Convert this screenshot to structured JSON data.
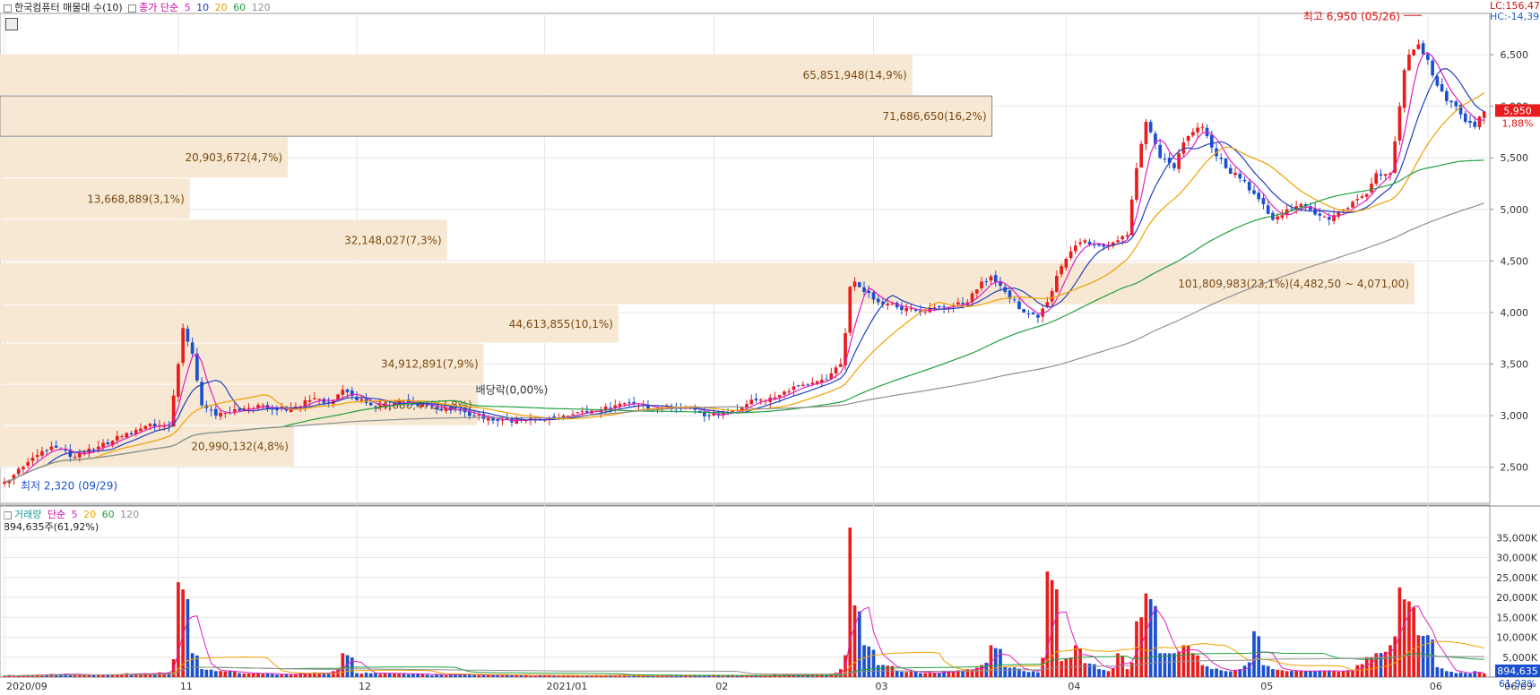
{
  "header": {
    "title": "한국컴퓨터 매물대 수(10)",
    "ma_prefix": "종가 단순",
    "ma": [
      {
        "label": "5",
        "color": "#e020c0"
      },
      {
        "label": "10",
        "color": "#2040c0"
      },
      {
        "label": "20",
        "color": "#f0a000"
      },
      {
        "label": "60",
        "color": "#20a040"
      },
      {
        "label": "120",
        "color": "#909090"
      }
    ],
    "lc": "LC:156,47",
    "hc": "HC:-14,39"
  },
  "volume_header": {
    "title": "거래량",
    "ma_prefix": "단순",
    "ma": [
      {
        "label": "5",
        "color": "#e020c0"
      },
      {
        "label": "20",
        "color": "#f0a000"
      },
      {
        "label": "60",
        "color": "#20a040"
      },
      {
        "label": "120",
        "color": "#909090"
      }
    ],
    "value": "894,635주(61,92%)"
  },
  "chart_data": {
    "type": "candlestick",
    "y_axis": {
      "ticks": [
        "2,500",
        "3,000",
        "3,500",
        "4,000",
        "4,500",
        "5,000",
        "5,500",
        "6,000",
        "6,500"
      ],
      "ylim": [
        2150,
        6900
      ]
    },
    "volume_axis": {
      "ticks": [
        "5,000K",
        "10,000K",
        "15,000K",
        "20,000K",
        "25,000K",
        "30,000K",
        "35,000K"
      ]
    },
    "x_labels": [
      {
        "label": "2020/09",
        "i": 0
      },
      {
        "label": "11",
        "i": 37
      },
      {
        "label": "12",
        "i": 75
      },
      {
        "label": "2021/01",
        "i": 115
      },
      {
        "label": "02",
        "i": 151
      },
      {
        "label": "03",
        "i": 185
      },
      {
        "label": "04",
        "i": 226
      },
      {
        "label": "05",
        "i": 267
      },
      {
        "label": "06",
        "i": 303
      }
    ],
    "last_date": "06/09",
    "current_price": "5,950",
    "current_pct": "1,88%",
    "current_volume": "894,635",
    "current_volume_pct": "61,92%",
    "high_annotation": "최고 6,950 (05/26)",
    "low_annotation": "최저 2,320 (09/29)",
    "dividend_annotation": "배당락(0,00%)",
    "volume_profile": [
      {
        "label": "65,851,948(14,9%)",
        "pct": 14.9,
        "low": 6100,
        "high": 6500
      },
      {
        "label": "71,686,650(16,2%)",
        "pct": 16.2,
        "low": 5700,
        "high": 6100
      },
      {
        "label": "20,903,672(4,7%)",
        "pct": 4.7,
        "low": 5300,
        "high": 5700
      },
      {
        "label": "13,668,889(3,1%)",
        "pct": 3.1,
        "low": 4900,
        "high": 5300
      },
      {
        "label": "32,148,027(7,3%)",
        "pct": 7.3,
        "low": 4500,
        "high": 4900
      },
      {
        "label": "101,809,983(23,1%)(4,482,50 ~ 4,071,00)",
        "pct": 23.1,
        "low": 4071,
        "high": 4482.5
      },
      {
        "label": "44,613,855(10,1%)",
        "pct": 10.1,
        "low": 3700,
        "high": 4071
      },
      {
        "label": "34,912,891(7,9%)",
        "pct": 7.9,
        "low": 3300,
        "high": 3700
      },
      {
        "label": "34,680,472(7,8%)",
        "pct": 7.8,
        "low": 2900,
        "high": 3300
      },
      {
        "label": "20,990,132(4,8%)",
        "pct": 4.8,
        "low": 2500,
        "high": 2900
      }
    ],
    "anchors": [
      [
        0,
        2360,
        0.3
      ],
      [
        5,
        2550,
        0.5
      ],
      [
        10,
        2700,
        0.8
      ],
      [
        15,
        2600,
        0.5
      ],
      [
        20,
        2700,
        0.6
      ],
      [
        25,
        2800,
        0.8
      ],
      [
        30,
        2900,
        1.0
      ],
      [
        35,
        2900,
        1.2
      ],
      [
        37,
        3500,
        23.8
      ],
      [
        38,
        3850,
        22.0
      ],
      [
        40,
        3600,
        6.0
      ],
      [
        42,
        3100,
        2.0
      ],
      [
        45,
        3000,
        1.5
      ],
      [
        50,
        3050,
        1.0
      ],
      [
        55,
        3100,
        0.8
      ],
      [
        60,
        3050,
        0.7
      ],
      [
        65,
        3150,
        1.0
      ],
      [
        70,
        3150,
        1.5
      ],
      [
        72,
        3250,
        6.0
      ],
      [
        75,
        3150,
        1.0
      ],
      [
        80,
        3100,
        0.8
      ],
      [
        85,
        3150,
        0.8
      ],
      [
        90,
        3100,
        0.6
      ],
      [
        95,
        3050,
        0.6
      ],
      [
        100,
        3000,
        0.5
      ],
      [
        105,
        2950,
        0.5
      ],
      [
        110,
        2950,
        0.4
      ],
      [
        115,
        2960,
        0.4
      ],
      [
        120,
        3000,
        0.4
      ],
      [
        125,
        3050,
        0.4
      ],
      [
        130,
        3100,
        0.4
      ],
      [
        135,
        3100,
        0.4
      ],
      [
        140,
        3080,
        0.4
      ],
      [
        145,
        3080,
        0.4
      ],
      [
        150,
        3000,
        0.4
      ],
      [
        155,
        3050,
        0.4
      ],
      [
        160,
        3150,
        0.5
      ],
      [
        165,
        3200,
        0.5
      ],
      [
        170,
        3300,
        0.6
      ],
      [
        175,
        3350,
        0.6
      ],
      [
        178,
        3500,
        2.0
      ],
      [
        179,
        3800,
        5.5
      ],
      [
        180,
        4250,
        37.5
      ],
      [
        181,
        4300,
        18.0
      ],
      [
        183,
        4200,
        8.0
      ],
      [
        186,
        4100,
        3.0
      ],
      [
        190,
        4050,
        1.5
      ],
      [
        195,
        4000,
        1.0
      ],
      [
        200,
        4050,
        1.5
      ],
      [
        205,
        4100,
        2.0
      ],
      [
        208,
        4300,
        3.0
      ],
      [
        210,
        4350,
        8.0
      ],
      [
        213,
        4200,
        2.5
      ],
      [
        217,
        4000,
        1.5
      ],
      [
        220,
        3950,
        1.2
      ],
      [
        222,
        4100,
        26.5
      ],
      [
        225,
        4450,
        4.0
      ],
      [
        228,
        4650,
        8.0
      ],
      [
        230,
        4700,
        3.5
      ],
      [
        233,
        4650,
        2.0
      ],
      [
        235,
        4650,
        1.5
      ],
      [
        237,
        4700,
        6.0
      ],
      [
        239,
        4750,
        2.0
      ],
      [
        241,
        5400,
        14.0
      ],
      [
        243,
        5850,
        21.0
      ],
      [
        246,
        5500,
        6.0
      ],
      [
        249,
        5400,
        6.0
      ],
      [
        251,
        5650,
        8.0
      ],
      [
        253,
        5750,
        6.0
      ],
      [
        255,
        5800,
        3.0
      ],
      [
        257,
        5600,
        2.0
      ],
      [
        260,
        5400,
        1.5
      ],
      [
        263,
        5300,
        2.0
      ],
      [
        266,
        5150,
        11.5
      ],
      [
        268,
        5050,
        3.0
      ],
      [
        270,
        4900,
        2.0
      ],
      [
        273,
        5000,
        1.5
      ],
      [
        276,
        5050,
        1.5
      ],
      [
        279,
        4950,
        1.5
      ],
      [
        282,
        4900,
        1.5
      ],
      [
        285,
        5000,
        1.5
      ],
      [
        288,
        5100,
        3.0
      ],
      [
        290,
        5150,
        5.0
      ],
      [
        292,
        5350,
        6.0
      ],
      [
        295,
        5350,
        8.0
      ],
      [
        297,
        6000,
        22.5
      ],
      [
        298,
        6350,
        19.5
      ],
      [
        299,
        6500,
        19.0
      ],
      [
        300,
        6550,
        17.5
      ],
      [
        301,
        6600,
        10.5
      ],
      [
        303,
        6450,
        10.5
      ],
      [
        305,
        6200,
        2.5
      ],
      [
        307,
        6050,
        1.5
      ],
      [
        309,
        6000,
        1.0
      ],
      [
        311,
        5850,
        1.0
      ],
      [
        313,
        5800,
        1.5
      ],
      [
        315,
        5950,
        0.9
      ]
    ]
  }
}
